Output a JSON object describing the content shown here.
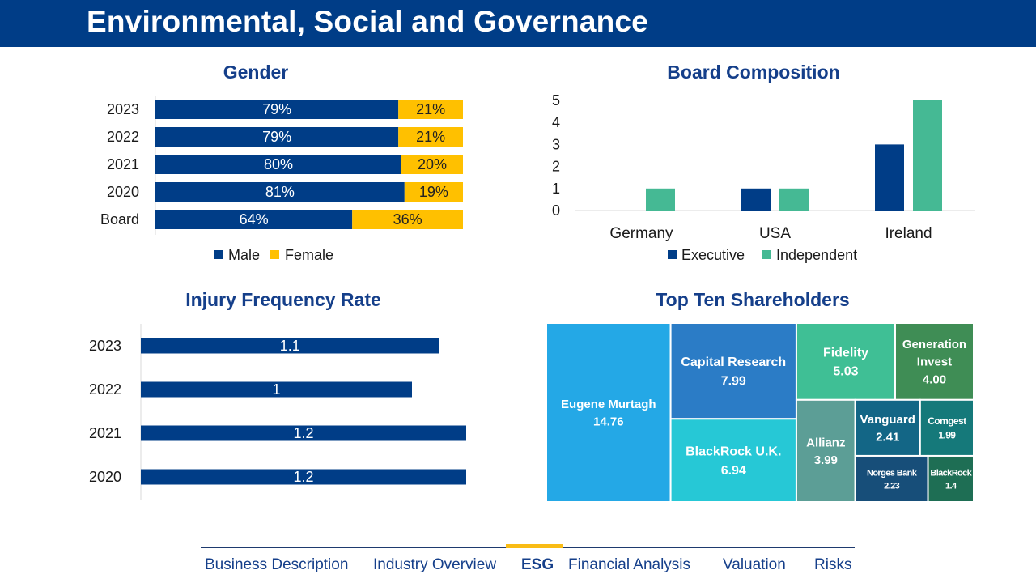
{
  "page": {
    "title": "Environmental, Social and Governance"
  },
  "colors": {
    "navy": "#003d87",
    "yellow": "#ffc000",
    "teal": "#45b994",
    "title_blue": "#153f8a"
  },
  "chart_data": [
    {
      "id": "gender",
      "type": "bar",
      "orientation": "horizontal",
      "stacked": true,
      "percent": true,
      "title": "Gender",
      "categories": [
        "2023",
        "2022",
        "2021",
        "2020",
        "Board"
      ],
      "series": [
        {
          "name": "Male",
          "values": [
            79,
            79,
            80,
            81,
            64
          ],
          "labels": [
            "79%",
            "79%",
            "80%",
            "81%",
            "64%"
          ],
          "color": "#003d87"
        },
        {
          "name": "Female",
          "values": [
            21,
            21,
            20,
            19,
            36
          ],
          "labels": [
            "21%",
            "21%",
            "20%",
            "19%",
            "36%"
          ],
          "color": "#ffc000"
        }
      ],
      "legend": "bottom"
    },
    {
      "id": "board",
      "type": "bar",
      "title": "Board Composition",
      "categories": [
        "Germany",
        "USA",
        "Ireland"
      ],
      "series": [
        {
          "name": "Executive",
          "values": [
            0,
            1,
            3
          ],
          "color": "#003d87"
        },
        {
          "name": "Independent",
          "values": [
            1,
            1,
            5
          ],
          "color": "#45b994"
        }
      ],
      "yticks": [
        "0",
        "1",
        "2",
        "3",
        "4",
        "5"
      ],
      "ylim": [
        0,
        5
      ],
      "legend": "bottom"
    },
    {
      "id": "injury",
      "type": "bar",
      "orientation": "horizontal",
      "title": "Injury Frequency Rate",
      "categories": [
        "2023",
        "2022",
        "2021",
        "2020"
      ],
      "values": [
        1.1,
        1,
        1.2,
        1.2
      ],
      "labels": [
        "1.1",
        "1",
        "1.2",
        "1.2"
      ],
      "color": "#003d87",
      "xlim": [
        0,
        1.2
      ]
    },
    {
      "id": "shareholders",
      "type": "treemap",
      "title": "Top Ten Shareholders",
      "items": [
        {
          "name": "Eugene Murtagh",
          "value": 14.76,
          "label": "14.76",
          "color": "#24a8e6"
        },
        {
          "name": "Capital Research",
          "value": 7.99,
          "label": "7.99",
          "color": "#2b7cc6"
        },
        {
          "name": "BlackRock U.K.",
          "value": 6.94,
          "label": "6.94",
          "color": "#26c8d6"
        },
        {
          "name": "Fidelity",
          "value": 5.03,
          "label": "5.03",
          "color": "#3fbf95"
        },
        {
          "name": "Generation Invest",
          "value": 4.0,
          "label": "4.00",
          "color": "#3f8d55"
        },
        {
          "name": "Allianz",
          "value": 3.99,
          "label": "3.99",
          "color": "#5c9e96"
        },
        {
          "name": "Vanguard",
          "value": 2.41,
          "label": "2.41",
          "color": "#136686"
        },
        {
          "name": "Comgest",
          "value": 1.99,
          "label": "1.99",
          "color": "#15797a"
        },
        {
          "name": "Norges Bank",
          "value": 2.23,
          "label": "2.23",
          "color": "#174e79"
        },
        {
          "name": "BlackRock",
          "value": 1.4,
          "label": "1.4",
          "color": "#1e6e54"
        }
      ]
    }
  ],
  "nav": {
    "items": [
      {
        "label": "Business Description",
        "active": false
      },
      {
        "label": "Industry Overview",
        "active": false
      },
      {
        "label": "ESG",
        "active": true
      },
      {
        "label": "Financial Analysis",
        "active": false
      },
      {
        "label": "Valuation",
        "active": false
      },
      {
        "label": "Risks",
        "active": false
      }
    ]
  }
}
